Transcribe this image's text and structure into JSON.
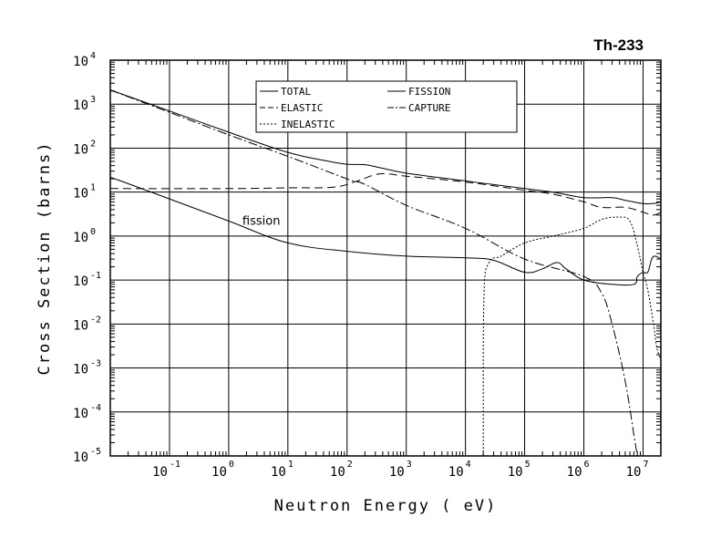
{
  "chart_data": {
    "type": "line",
    "title": "Th-233",
    "xlabel": "Neutron Energy ( eV)",
    "ylabel": "Cross Section (barns)",
    "x_scale": "log",
    "y_scale": "log",
    "xlim": [
      0.01,
      20000000
    ],
    "ylim": [
      1e-05,
      10000
    ],
    "grid": true,
    "legend_placement": "top-center",
    "x_ticks": [
      {
        "base": "10",
        "exp": "-1",
        "value": 0.1
      },
      {
        "base": "10",
        "exp": "0",
        "value": 1
      },
      {
        "base": "10",
        "exp": "1",
        "value": 10
      },
      {
        "base": "10",
        "exp": "2",
        "value": 100
      },
      {
        "base": "10",
        "exp": "3",
        "value": 1000
      },
      {
        "base": "10",
        "exp": "4",
        "value": 10000
      },
      {
        "base": "10",
        "exp": "5",
        "value": 100000
      },
      {
        "base": "10",
        "exp": "6",
        "value": 1000000
      },
      {
        "base": "10",
        "exp": "7",
        "value": 10000000
      }
    ],
    "y_ticks": [
      {
        "base": "10",
        "exp": "-5",
        "value": 1e-05
      },
      {
        "base": "10",
        "exp": "-4",
        "value": 0.0001
      },
      {
        "base": "10",
        "exp": "-3",
        "value": 0.001
      },
      {
        "base": "10",
        "exp": "-2",
        "value": 0.01
      },
      {
        "base": "10",
        "exp": "-1",
        "value": 0.1
      },
      {
        "base": "10",
        "exp": "0",
        "value": 1
      },
      {
        "base": "10",
        "exp": "1",
        "value": 10
      },
      {
        "base": "10",
        "exp": "2",
        "value": 100
      },
      {
        "base": "10",
        "exp": "3",
        "value": 1000
      },
      {
        "base": "10",
        "exp": "4",
        "value": 10000
      }
    ],
    "annotations": [
      {
        "text": "fission",
        "x": 0.9,
        "y": 2.2
      }
    ],
    "series": [
      {
        "name": "TOTAL",
        "dash": "solid",
        "points": [
          [
            0.01,
            2100
          ],
          [
            0.1,
            700
          ],
          [
            1,
            230
          ],
          [
            10,
            80
          ],
          [
            50,
            50
          ],
          [
            100,
            43
          ],
          [
            200,
            42
          ],
          [
            300,
            38
          ],
          [
            1000,
            27
          ],
          [
            10000,
            18
          ],
          [
            100000,
            12
          ],
          [
            300000,
            10
          ],
          [
            1000000,
            7.5
          ],
          [
            3000000,
            7.5
          ],
          [
            5000000,
            6.5
          ],
          [
            10000000,
            5.5
          ],
          [
            15000000,
            5.5
          ],
          [
            20000000,
            6
          ]
        ]
      },
      {
        "name": "ELASTIC",
        "dash": "dashed",
        "points": [
          [
            0.01,
            12
          ],
          [
            1,
            12
          ],
          [
            10,
            12.5
          ],
          [
            60,
            13
          ],
          [
            150,
            18
          ],
          [
            300,
            25
          ],
          [
            500,
            26
          ],
          [
            1000,
            23
          ],
          [
            10000,
            17
          ],
          [
            100000,
            11
          ],
          [
            300000,
            9
          ],
          [
            1000000,
            6
          ],
          [
            2000000,
            4.5
          ],
          [
            5000000,
            4.5
          ],
          [
            10000000,
            3.5
          ],
          [
            15000000,
            3
          ],
          [
            20000000,
            3.5
          ]
        ]
      },
      {
        "name": "INELASTIC",
        "dash": "dotted",
        "points": [
          [
            20000,
            1e-05
          ],
          [
            20500,
            0.04
          ],
          [
            25000,
            0.25
          ],
          [
            40000,
            0.35
          ],
          [
            100000,
            0.7
          ],
          [
            300000,
            1
          ],
          [
            1000000,
            1.5
          ],
          [
            2000000,
            2.4
          ],
          [
            4000000,
            2.7
          ],
          [
            6000000,
            2.2
          ],
          [
            8000000,
            0.6
          ],
          [
            10000000,
            0.15
          ],
          [
            12000000,
            0.06
          ],
          [
            15000000,
            0.01
          ],
          [
            17000000,
            0.003
          ],
          [
            20000000,
            0.0015
          ]
        ]
      },
      {
        "name": "FISSION",
        "dash": "solid",
        "points": [
          [
            0.01,
            22
          ],
          [
            0.1,
            7
          ],
          [
            1,
            2.2
          ],
          [
            10,
            0.7
          ],
          [
            100,
            0.45
          ],
          [
            1000,
            0.35
          ],
          [
            10000,
            0.32
          ],
          [
            30000,
            0.28
          ],
          [
            100000,
            0.15
          ],
          [
            200000,
            0.18
          ],
          [
            350000,
            0.25
          ],
          [
            500000,
            0.18
          ],
          [
            1000000,
            0.1
          ],
          [
            3000000,
            0.08
          ],
          [
            7000000,
            0.08
          ],
          [
            8000000,
            0.12
          ],
          [
            10000000,
            0.15
          ],
          [
            12000000,
            0.15
          ],
          [
            14000000,
            0.3
          ],
          [
            16000000,
            0.35
          ],
          [
            20000000,
            0.3
          ]
        ]
      },
      {
        "name": "CAPTURE",
        "dash": "dashdot",
        "points": [
          [
            0.01,
            2100
          ],
          [
            0.1,
            650
          ],
          [
            1,
            200
          ],
          [
            10,
            65
          ],
          [
            100,
            20
          ],
          [
            200,
            15
          ],
          [
            1000,
            5
          ],
          [
            10000,
            1.5
          ],
          [
            100000,
            0.3
          ],
          [
            1000000,
            0.12
          ],
          [
            2000000,
            0.05
          ],
          [
            3000000,
            0.01
          ],
          [
            5000000,
            0.0005
          ],
          [
            7000000,
            3e-05
          ],
          [
            8000000,
            1e-05
          ]
        ]
      }
    ]
  }
}
